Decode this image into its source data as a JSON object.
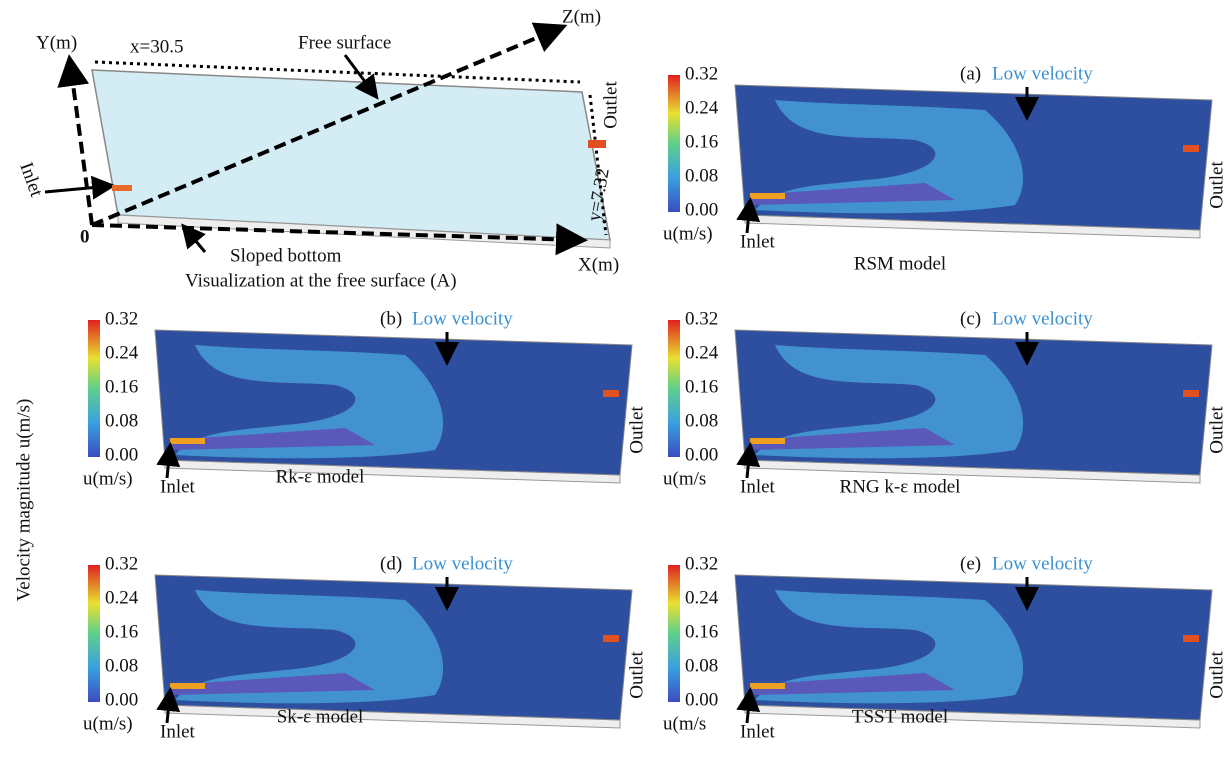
{
  "schematic": {
    "y_axis": "Y(m)",
    "x_length": "x=30.5",
    "free_surface": "Free surface",
    "z_axis": "Z(m)",
    "outlet": "Outlet",
    "inlet": "Inlet",
    "origin": "0",
    "sloped_bottom": "Sloped bottom",
    "y_width": "y=7.32",
    "x_axis": "X(m)",
    "caption": "Visualization at the free surface (A)"
  },
  "side_label": "Velocity magnitude  u(m/s)",
  "colorbar": {
    "ticks": [
      "0.32",
      "0.24",
      "0.16",
      "0.08",
      "0.00"
    ],
    "unit": "u(m/s)"
  },
  "panels": [
    {
      "tag": "(a)",
      "note": "Low velocity",
      "inlet": "Inlet",
      "outlet": "Outlet",
      "model": "RSM model",
      "unit": "u(m/s)"
    },
    {
      "tag": "(b)",
      "note": "Low velocity",
      "inlet": "Inlet",
      "outlet": "Outlet",
      "model": "Rk-ε model",
      "unit": "u(m/s)"
    },
    {
      "tag": "(c)",
      "note": "Low velocity",
      "inlet": "Inlet",
      "outlet": "Outlet",
      "model": "RNG k-ε model",
      "unit": "u(m/s"
    },
    {
      "tag": "(d)",
      "note": "Low velocity",
      "inlet": "Inlet",
      "outlet": "Outlet",
      "model": "Sk-ε model",
      "unit": "u(m/s)"
    },
    {
      "tag": "(e)",
      "note": "Low velocity",
      "inlet": "Inlet",
      "outlet": "Outlet",
      "model": "TSST model",
      "unit": "u(m/s"
    }
  ]
}
